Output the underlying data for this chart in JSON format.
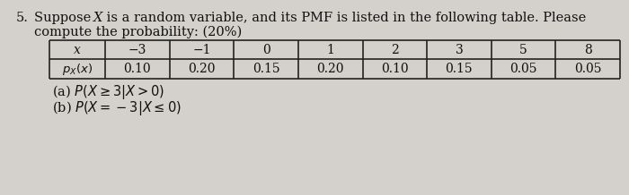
{
  "problem_number": "5.",
  "intro_line1_prefix": "5.  Suppose ",
  "intro_line1_X": "X",
  "intro_line1_suffix": " is a random variable, and its PMF is listed in the following table. Please",
  "intro_line2": "compute the probability: (20%)",
  "x_values": [
    "−3",
    "−1",
    "0",
    "1",
    "2",
    "3",
    "5",
    "8"
  ],
  "pmf_values": [
    "0.10",
    "0.20",
    "0.15",
    "0.20",
    "0.10",
    "0.15",
    "0.05",
    "0.05"
  ],
  "row1_label": "x",
  "row2_label": "px(x)",
  "part_a": "(a) P(X ≥ 3|X > 0)",
  "part_b": "(b) P(X = −3|X ≤ 0)",
  "bg_color": "#d4d0cb",
  "text_color": "#111111",
  "table_line_color": "#222222",
  "font_size_main": 10.5,
  "font_size_table": 10.0,
  "font_size_label": 9.5,
  "font_size_parts": 10.5
}
